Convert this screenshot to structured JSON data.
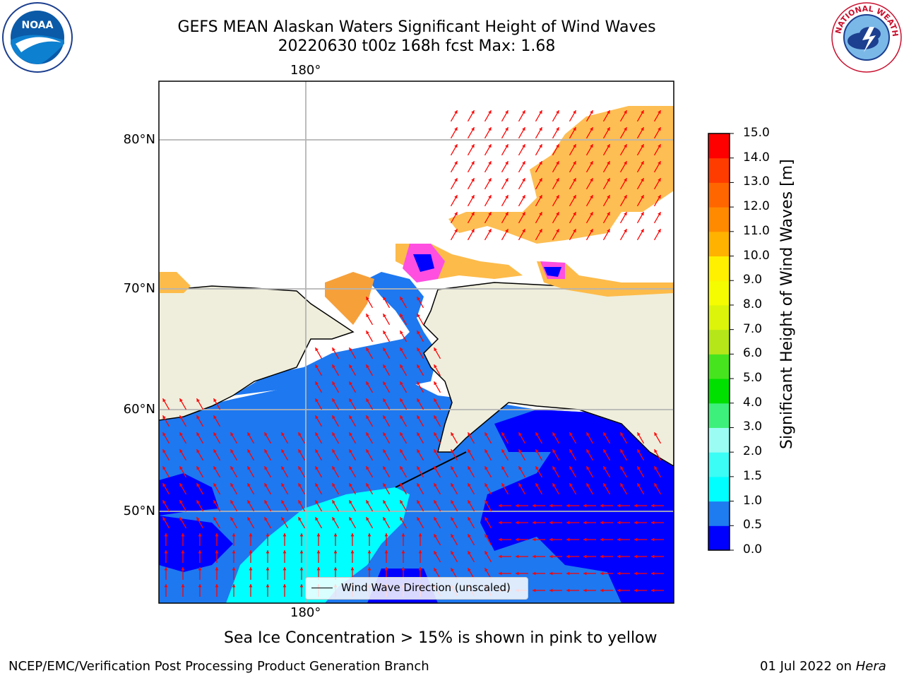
{
  "title": {
    "line1": "GEFS MEAN Alaskan Waters Significant Height of Wind Waves",
    "line2": "20220630 t00z 168h fcst   Max: 1.68"
  },
  "logos": {
    "left": {
      "icon": "noaa-logo-icon",
      "text": "NOAA"
    },
    "right": {
      "icon": "nws-logo-icon",
      "text": "NATIONAL WEATHER SERVICE"
    }
  },
  "map": {
    "lat_labels": [
      "80°N",
      "70°N",
      "60°N",
      "50°N"
    ],
    "lon_label_top": "180°",
    "lon_label_bottom": "180°",
    "legend_label": "Wind Wave Direction (unscaled)",
    "colors": {
      "land": "#efeedc",
      "ocean_0": "#0000ff",
      "ocean_05": "#1e78f0",
      "ocean_15": "#00ffff",
      "ice": "#fdbb4a",
      "arrow": "#ff0000"
    }
  },
  "colorbar": {
    "label": "Significant Height of Wind Waves [m]",
    "ticks": [
      "0.0",
      "0.5",
      "1.0",
      "1.5",
      "2.0",
      "3.0",
      "4.0",
      "5.0",
      "6.0",
      "7.0",
      "8.0",
      "9.0",
      "10.0",
      "11.0",
      "12.0",
      "13.0",
      "14.0",
      "15.0"
    ],
    "colors": [
      "#0000ff",
      "#1e7cf0",
      "#00ffff",
      "#3cfcf6",
      "#9bfcf4",
      "#3df07b",
      "#00e000",
      "#46e41f",
      "#b5e61a",
      "#dbf40a",
      "#f5fb00",
      "#fff000",
      "#ffb200",
      "#ff8a00",
      "#ff6600",
      "#ff3c00",
      "#ff0000"
    ]
  },
  "note": "Sea Ice Concentration > 15% is shown in pink to yellow",
  "footer": {
    "left": "NCEP/EMC/Verification Post Processing Product Generation Branch",
    "right_date": "01 Jul 2022 on ",
    "right_machine": "Hera"
  }
}
